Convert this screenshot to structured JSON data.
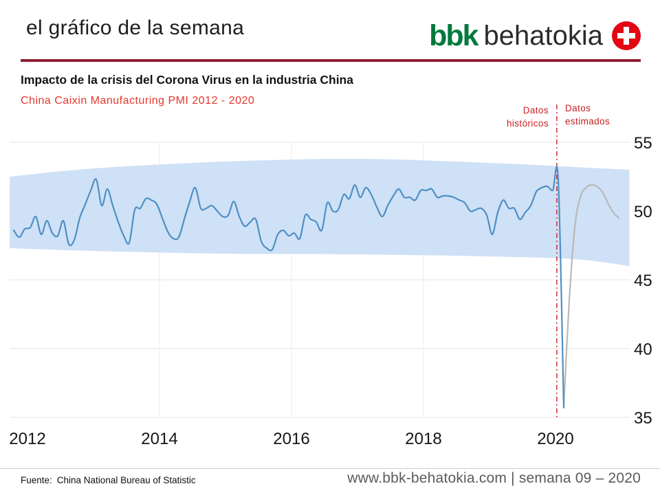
{
  "header": {
    "page_title": "el gráfico de la semana",
    "logo": {
      "bbk": "bbk",
      "behatokia": "behatokia"
    }
  },
  "footer": {
    "source_label": "Fuente:",
    "source": "China National Bureau of Statistic",
    "website": "www.bbk-behatokia.com | semana 09 – 2020"
  },
  "colors": {
    "rule_maroon": "#8e1d33",
    "title_red": "#e5352b",
    "annotation_red": "#c92020",
    "logo_green": "#00793c",
    "logo_red": "#e30613",
    "line_blue": "#4d8fc4",
    "line_gray": "#b8b8b8",
    "band_blue": "#cfe1f6"
  },
  "chart_data": {
    "type": "line",
    "title": "Impacto de la crisis del Corona Virus en la industria China",
    "subtitle": "China Caixin Manufacturing PMI 2012 - 2020",
    "annotations": [
      "Datos históricos",
      "Datos estimados"
    ],
    "x_ticks": [
      2012,
      2014,
      2016,
      2018,
      2020
    ],
    "y_ticks": [
      35,
      40,
      45,
      50,
      55
    ],
    "ylim": [
      35,
      55
    ],
    "xlim": [
      2011.73,
      2021.12
    ],
    "divider_x": 2020.02,
    "grid": true,
    "legend_position": "none",
    "series": [
      {
        "id": "historical",
        "name": "Datos históricos",
        "color": "#4d8fc4",
        "x_start": 2011.792,
        "x_step": 0.083333,
        "values": [
          48.6,
          48.1,
          48.7,
          48.8,
          49.6,
          48.3,
          49.3,
          48.4,
          48.2,
          49.3,
          47.6,
          47.9,
          49.5,
          50.5,
          51.5,
          52.3,
          50.4,
          51.6,
          50.4,
          49.2,
          48.2,
          47.7,
          50.1,
          50.2,
          50.9,
          50.8,
          50.5,
          49.5,
          48.5,
          48.0,
          48.1,
          49.4,
          50.7,
          51.7,
          50.2,
          50.2,
          50.4,
          50.0,
          49.6,
          49.7,
          50.7,
          49.6,
          48.9,
          49.2,
          49.4,
          47.8,
          47.3,
          47.2,
          48.3,
          48.6,
          48.2,
          48.4,
          48.0,
          49.7,
          49.4,
          49.2,
          48.6,
          50.6,
          50.0,
          50.1,
          51.2,
          50.9,
          51.9,
          51.0,
          51.7,
          51.2,
          50.3,
          49.6,
          50.4,
          51.1,
          51.6,
          51.0,
          51.0,
          50.8,
          51.5,
          51.5,
          51.6,
          51.0,
          51.1,
          51.1,
          51.0,
          50.8,
          50.6,
          50.0,
          50.1,
          50.2,
          49.7,
          48.3,
          49.9,
          50.8,
          50.2,
          50.2,
          49.4,
          49.9,
          50.4,
          51.4,
          51.7,
          51.8,
          51.5,
          52.2,
          35.7
        ]
      },
      {
        "id": "estimated",
        "name": "Datos estimados",
        "color": "#b8b8b8",
        "x_start": 2020.125,
        "x_step": 0.083333,
        "values": [
          35.7,
          43.5,
          48.8,
          51.0,
          51.7,
          51.9,
          51.8,
          51.4,
          50.6,
          49.9,
          49.5
        ]
      }
    ],
    "band": {
      "color": "#cfe1f6",
      "x": [
        2011.73,
        2013.0,
        2015.0,
        2017.0,
        2019.0,
        2020.3,
        2021.12
      ],
      "upper": [
        52.5,
        53.1,
        53.6,
        53.8,
        53.5,
        53.2,
        53.0
      ],
      "lower": [
        47.3,
        47.1,
        46.9,
        46.85,
        46.7,
        46.5,
        46.0
      ]
    }
  }
}
